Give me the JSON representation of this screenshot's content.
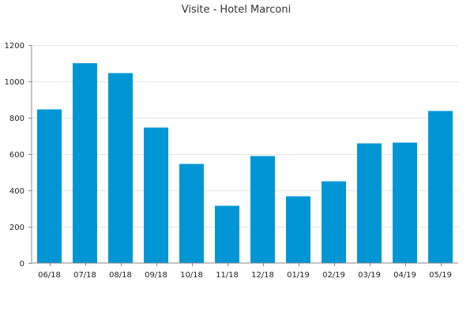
{
  "chart_data": {
    "type": "bar",
    "title": "Visite - Hotel Marconi",
    "categories": [
      "06/18",
      "07/18",
      "08/18",
      "09/18",
      "10/18",
      "11/18",
      "12/18",
      "01/19",
      "02/19",
      "03/19",
      "04/19",
      "05/19"
    ],
    "values": [
      845,
      1100,
      1045,
      745,
      545,
      315,
      590,
      368,
      450,
      658,
      662,
      838
    ],
    "ylim": [
      0,
      1200
    ],
    "yticks": [
      0,
      200,
      400,
      600,
      800,
      1000,
      1200
    ],
    "grid": true,
    "legend": "none",
    "bar_color": "#0096d6"
  }
}
